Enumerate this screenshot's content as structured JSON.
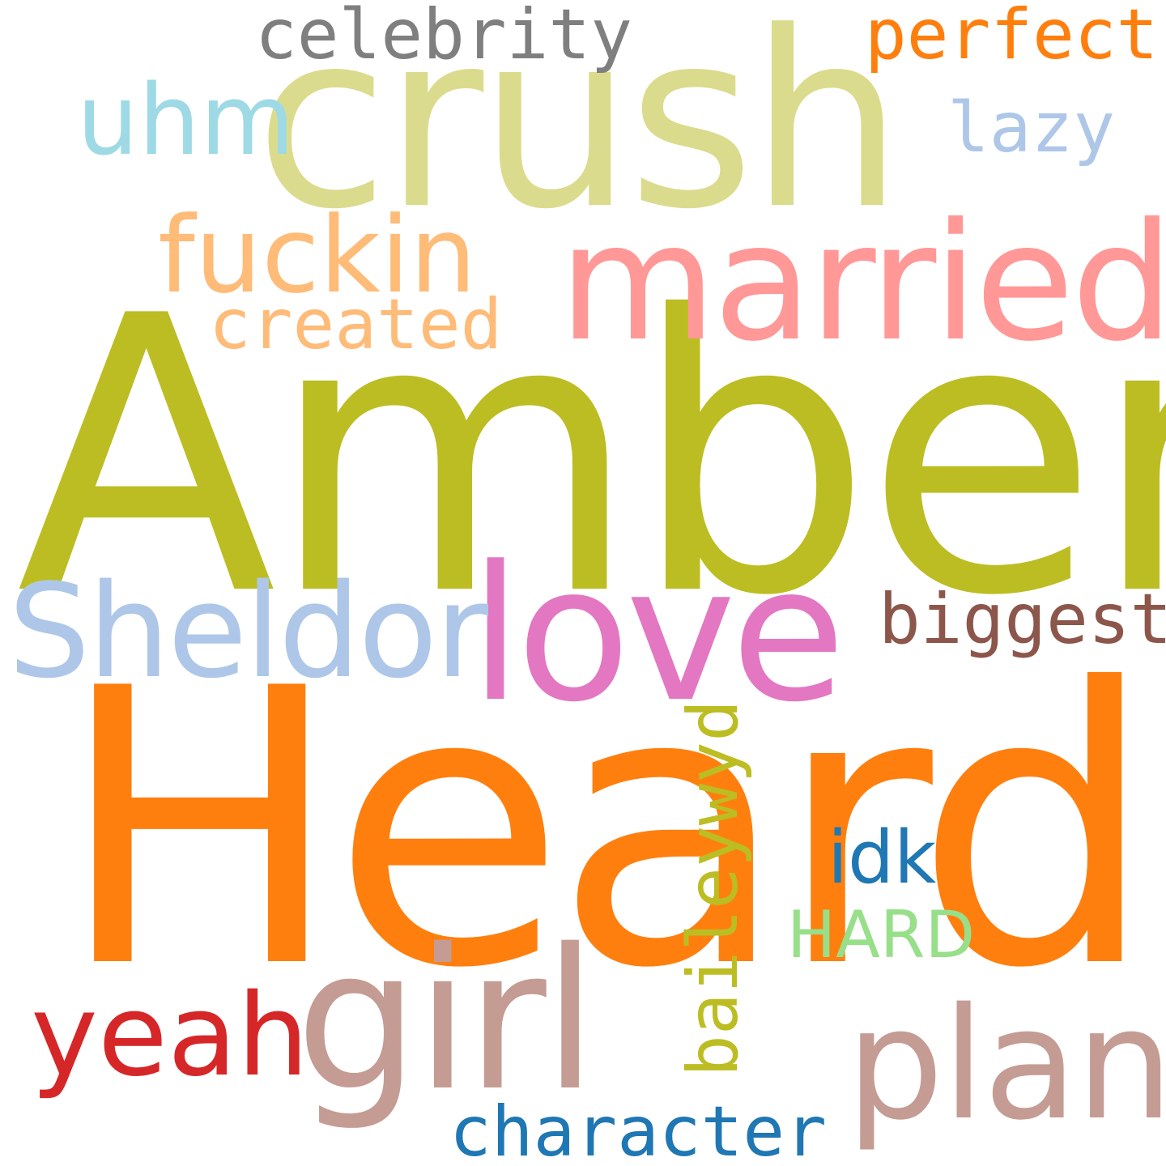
{
  "words": {
    "amber": {
      "text": "Amber",
      "color": "#bcbd22"
    },
    "heard": {
      "text": "Heard",
      "color": "#ff7f0e"
    },
    "crush": {
      "text": "crush",
      "color": "#dbdb8d"
    },
    "married": {
      "text": "married",
      "color": "#ff9896"
    },
    "love": {
      "text": "love",
      "color": "#e377c2"
    },
    "sheldor": {
      "text": "Sheldor",
      "color": "#aec7e8"
    },
    "girl": {
      "text": "girl",
      "color": "#c49c94"
    },
    "plan": {
      "text": "plan",
      "color": "#c49c94"
    },
    "yeah": {
      "text": "yeah",
      "color": "#d62728"
    },
    "fuckin": {
      "text": "fuckin",
      "color": "#ffbb78"
    },
    "uhm": {
      "text": "uhm",
      "color": "#9edae5"
    },
    "celebrity": {
      "text": "celebrity",
      "color": "#7f7f7f"
    },
    "perfect": {
      "text": "perfect",
      "color": "#ff7f0e"
    },
    "lazy": {
      "text": "lazy",
      "color": "#aec7e8"
    },
    "created": {
      "text": "created",
      "color": "#ffbb78"
    },
    "biggest": {
      "text": "biggest",
      "color": "#8c564b"
    },
    "idk": {
      "text": "idk",
      "color": "#1f77b4"
    },
    "hard": {
      "text": "HARD",
      "color": "#98df8a"
    },
    "character": {
      "text": "character",
      "color": "#1f77b4"
    },
    "baileywyd": {
      "text": "baileywyd",
      "color": "#bcbd22"
    }
  }
}
